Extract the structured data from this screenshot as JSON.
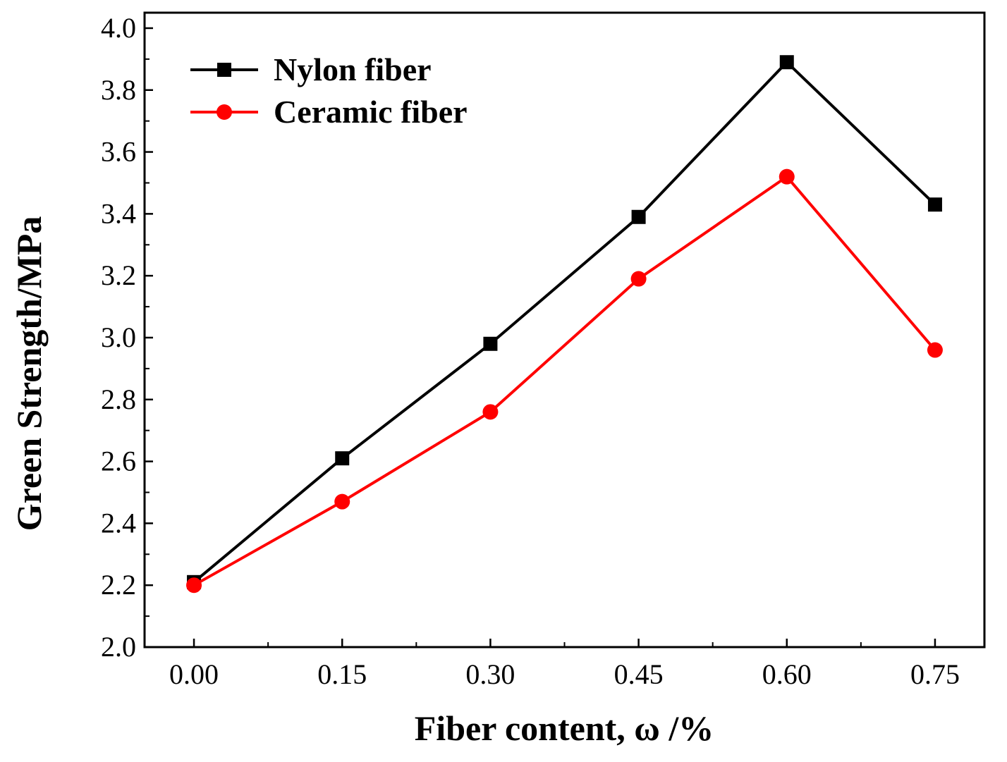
{
  "chart_data": {
    "type": "line",
    "title": "",
    "xlabel": "Fiber content, ω /%",
    "ylabel": "Green Strength/MPa",
    "x": [
      0.0,
      0.15,
      0.3,
      0.45,
      0.6,
      0.75
    ],
    "x_tick_labels": [
      "0.00",
      "0.15",
      "0.30",
      "0.45",
      "0.60",
      "0.75"
    ],
    "y_tick_labels": [
      "2.0",
      "2.2",
      "2.4",
      "2.6",
      "2.8",
      "3.0",
      "3.2",
      "3.4",
      "3.6",
      "3.8",
      "4.0"
    ],
    "xlim": [
      -0.05,
      0.8
    ],
    "ylim": [
      2.0,
      4.05
    ],
    "grid": false,
    "legend_position": "top-left",
    "series": [
      {
        "name": "Nylon fiber",
        "color": "#000000",
        "marker": "square",
        "values": [
          2.21,
          2.61,
          2.98,
          3.39,
          3.89,
          3.43
        ]
      },
      {
        "name": "Ceramic fiber",
        "color": "#ff0000",
        "marker": "circle",
        "values": [
          2.2,
          2.47,
          2.76,
          3.19,
          3.52,
          2.96
        ]
      }
    ]
  }
}
